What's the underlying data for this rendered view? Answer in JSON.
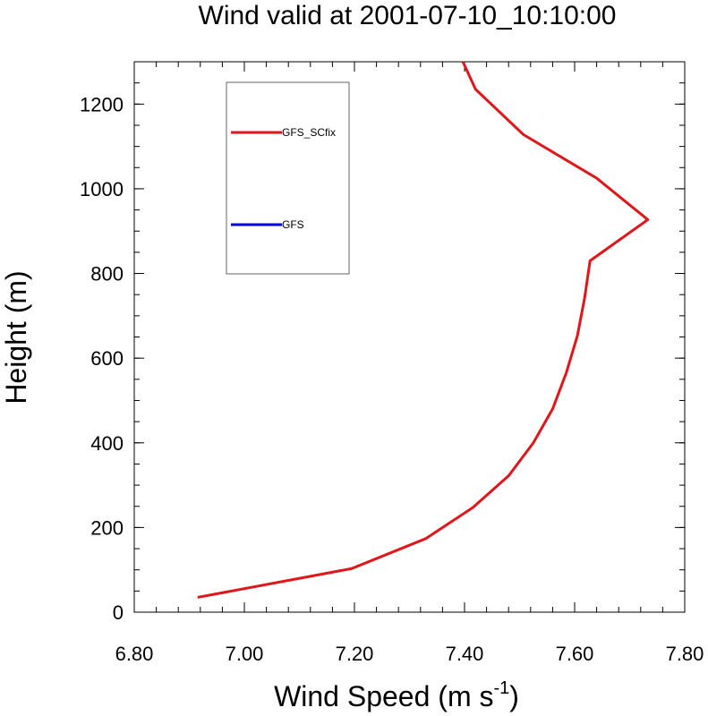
{
  "chart_data": {
    "type": "line",
    "title": "Wind valid at 2001-07-10_10:10:00",
    "xlabel": "Wind Speed (m s",
    "xlabel_sup": "-1",
    "xlabel_end": ")",
    "ylabel": "Height (m)",
    "xlim": [
      6.8,
      7.8
    ],
    "ylim": [
      0,
      1300
    ],
    "xticks": [
      6.8,
      7.0,
      7.2,
      7.4,
      7.6,
      7.8
    ],
    "xtick_labels": [
      "6.80",
      "7.00",
      "7.20",
      "7.40",
      "7.60",
      "7.80"
    ],
    "yticks": [
      0,
      200,
      400,
      600,
      800,
      1000,
      1200
    ],
    "ytick_labels": [
      "0",
      "200",
      "400",
      "600",
      "800",
      "1000",
      "1200"
    ],
    "grid": false,
    "legend_position": "top-left",
    "series": [
      {
        "name": "GFS_SCfix",
        "color": "#e0161b",
        "x": [
          6.915,
          7.195,
          7.33,
          7.415,
          7.48,
          7.525,
          7.56,
          7.585,
          7.605,
          7.618,
          7.628,
          7.733,
          7.64,
          7.507,
          7.42,
          7.397
        ],
        "y": [
          35,
          103,
          174,
          247,
          322,
          400,
          480,
          566,
          653,
          741,
          830,
          927,
          1025,
          1128,
          1235,
          1300
        ]
      },
      {
        "name": "GFS",
        "color": "#0000e0",
        "x": [],
        "y": []
      }
    ]
  }
}
